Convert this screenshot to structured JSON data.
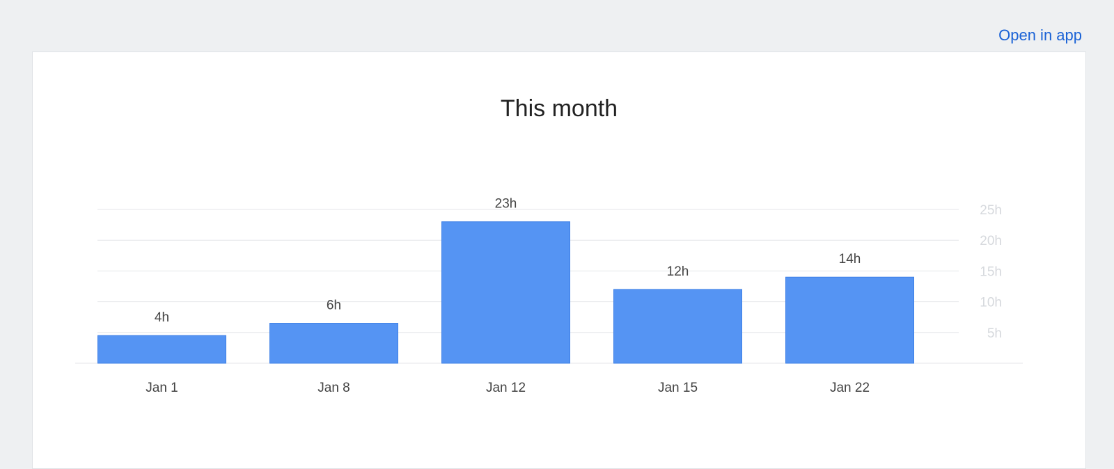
{
  "header": {
    "open_in_app": "Open in app"
  },
  "colors": {
    "bar": "#5594f3",
    "bar_border": "#3d7fe6",
    "grid": "#e4e6e9",
    "link": "#1a62d6"
  },
  "chart_data": {
    "type": "bar",
    "title": "This month",
    "categories": [
      "Jan 1",
      "Jan 8",
      "Jan 12",
      "Jan 15",
      "Jan 22"
    ],
    "values": [
      4.5,
      6.5,
      23,
      12,
      14
    ],
    "value_labels": [
      "4h",
      "6h",
      "23h",
      "12h",
      "14h"
    ],
    "y_ticks": [
      5,
      10,
      15,
      20,
      25
    ],
    "y_tick_labels": [
      "5h",
      "10h",
      "15h",
      "20h",
      "25h"
    ],
    "ylim": [
      0,
      25
    ],
    "y_axis_position": "right",
    "grid": true
  }
}
